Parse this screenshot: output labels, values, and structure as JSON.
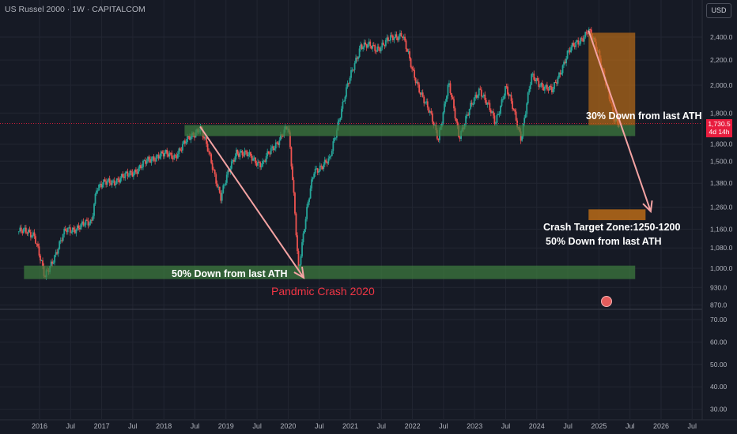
{
  "header": {
    "title": "US Russel 2000 · 1W · CAPITALCOM",
    "currency_button": "USD"
  },
  "colors": {
    "background": "#161a25",
    "candle_up": "#26a69a",
    "candle_down": "#ef5350",
    "zone_green": "#3f7f3f",
    "zone_orange": "#b86b17",
    "arrow": "#f4a3a3",
    "crash_text": "#f23645"
  },
  "last_price": {
    "value": "1,730.5",
    "countdown": "4d 14h"
  },
  "chart_data": {
    "type": "candlestick",
    "x_ticks": [
      "2016",
      "Jul",
      "2017",
      "Jul",
      "2018",
      "Jul",
      "2019",
      "Jul",
      "2020",
      "Jul",
      "2021",
      "Jul",
      "2022",
      "Jul",
      "2023",
      "Jul",
      "2024",
      "Jul",
      "2025",
      "Jul",
      "2026",
      "Jul"
    ],
    "y_ticks_main": [
      "2,400.0",
      "2,200.0",
      "2,000.0",
      "1,800.0",
      "1,600.0",
      "1,500.0",
      "1,380.0",
      "1,260.0",
      "1,160.0",
      "1,080.0",
      "1,000.0",
      "930.0",
      "870.0"
    ],
    "y_ticks_lower": [
      "70.00",
      "60.00",
      "50.00",
      "40.00",
      "30.00"
    ],
    "price_path": [
      [
        "2015-09",
        1150
      ],
      [
        "2015-12",
        1140
      ],
      [
        "2016-02",
        960
      ],
      [
        "2016-06",
        1150
      ],
      [
        "2016-11",
        1190
      ],
      [
        "2016-12",
        1360
      ],
      [
        "2017-06",
        1420
      ],
      [
        "2017-12",
        1540
      ],
      [
        "2018-03",
        1530
      ],
      [
        "2018-08",
        1710
      ],
      [
        "2018-12",
        1310
      ],
      [
        "2019-03",
        1560
      ],
      [
        "2019-06",
        1520
      ],
      [
        "2019-08",
        1480
      ],
      [
        "2019-12",
        1670
      ],
      [
        "2020-01",
        1700
      ],
      [
        "2020-03",
        991
      ],
      [
        "2020-06",
        1450
      ],
      [
        "2020-09",
        1500
      ],
      [
        "2020-11",
        1790
      ],
      [
        "2021-03",
        2330
      ],
      [
        "2021-06",
        2300
      ],
      [
        "2021-11",
        2440
      ],
      [
        "2022-01",
        2100
      ],
      [
        "2022-06",
        1640
      ],
      [
        "2022-08",
        2000
      ],
      [
        "2022-10",
        1650
      ],
      [
        "2023-02",
        1980
      ],
      [
        "2023-05",
        1730
      ],
      [
        "2023-07",
        1990
      ],
      [
        "2023-10",
        1640
      ],
      [
        "2023-12",
        2060
      ],
      [
        "2024-04",
        1950
      ],
      [
        "2024-07",
        2260
      ],
      [
        "2024-11",
        2460
      ],
      [
        "2025-01",
        2250
      ],
      [
        "2025-04",
        1740
      ],
      [
        "2025-05",
        1730
      ]
    ],
    "zones": [
      {
        "type": "support",
        "from": "2018-05",
        "to": "2025-08",
        "low": 1650,
        "high": 1720
      },
      {
        "type": "support",
        "from": "2015-10",
        "to": "2025-08",
        "low": 960,
        "high": 1010
      },
      {
        "type": "drop_box",
        "from": "2024-11",
        "to": "2025-08",
        "low": 1720,
        "high": 2440
      },
      {
        "type": "target",
        "from": "2024-11",
        "to": "2025-10",
        "low": 1200,
        "high": 1250
      }
    ],
    "arrows": [
      {
        "from": [
          "2018-08",
          1710
        ],
        "to": [
          "2020-04",
          965
        ]
      },
      {
        "from": [
          "2024-11",
          2460
        ],
        "to": [
          "2025-11",
          1240
        ]
      }
    ],
    "annotations": {
      "drop_30": "30% Down from last ATH",
      "target_zone": "Crash Target Zone:1250-1200",
      "drop_50_upper": "50% Down from last ATH",
      "drop_50_lower": "50% Down from last ATH",
      "crash_2020": "Pandmic Crash 2020"
    }
  }
}
